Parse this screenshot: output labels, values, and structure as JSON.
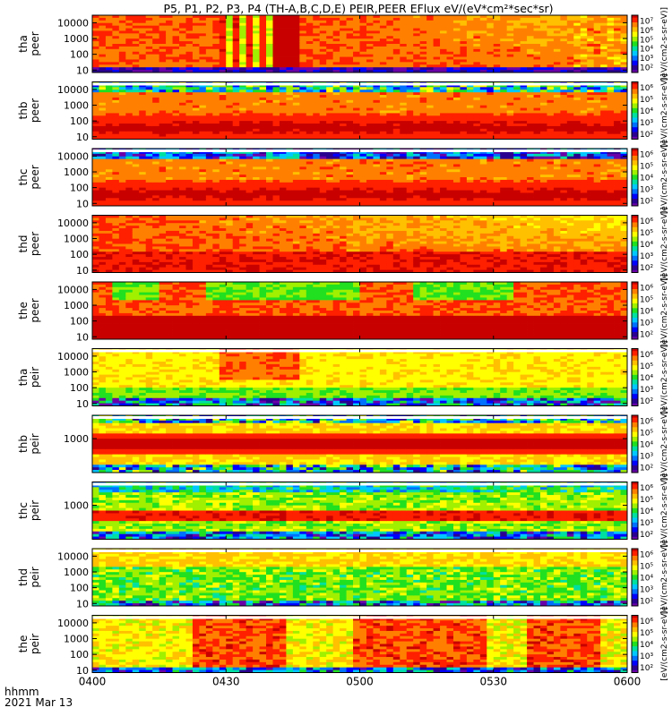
{
  "title": "P5, P1, P2, P3, P4 (TH-A,B,C,D,E) PEIR,PEER EFlux eV/(eV*cm²*sec*sr)",
  "footer": {
    "time_format": "hhmm",
    "date": "2021 Mar 13"
  },
  "colorbar_label": "[eV/(cm2-s-sr-eV)]",
  "palette": [
    "#ffffff",
    "#000000",
    "#6a00a8",
    "#2a0090",
    "#0000ff",
    "#0070ff",
    "#00c8ff",
    "#00e0a0",
    "#20e020",
    "#a0f000",
    "#ffff00",
    "#ffc000",
    "#ff8000",
    "#ff2000",
    "#c80000"
  ],
  "chart_data": {
    "type": "heatmap",
    "x_axis": {
      "ticks": [
        "0400",
        "0430",
        "0500",
        "0530",
        "0600"
      ],
      "range": [
        "04:00",
        "06:00"
      ]
    },
    "panels": [
      {
        "probe": "tha",
        "species": "peer",
        "ylabel": [
          "tha",
          "peer"
        ],
        "y_ticks": [
          "10000",
          "1000",
          "100",
          "10"
        ],
        "y_range_eV": [
          7,
          30000
        ],
        "cb_ticks": [
          "10⁷",
          "10⁶",
          "10⁵",
          "10⁴",
          "10³",
          "10²"
        ],
        "base": 12.6,
        "low_base": 11.6,
        "high_base": 12.2,
        "events": [
          {
            "t0": 28,
            "t1": 46,
            "kind": "striated"
          },
          {
            "t0": 41,
            "t1": 47,
            "kind": "dark"
          },
          {
            "t0": 108,
            "t1": 120,
            "kind": "mixed"
          }
        ]
      },
      {
        "probe": "thb",
        "species": "peer",
        "ylabel": [
          "thb",
          "peer"
        ],
        "y_ticks": [
          "10000",
          "1000",
          "100",
          "10"
        ],
        "y_range_eV": [
          7,
          30000
        ],
        "cb_ticks": [
          "10⁶",
          "10⁵",
          "10⁴",
          "10³",
          "10²"
        ],
        "band": "stable",
        "top_band": "noisy"
      },
      {
        "probe": "thc",
        "species": "peer",
        "ylabel": [
          "thc",
          "peer"
        ],
        "y_ticks": [
          "10000",
          "1000",
          "100",
          "10"
        ],
        "y_range_eV": [
          7,
          30000
        ],
        "cb_ticks": [
          "10⁶",
          "10⁵",
          "10⁴",
          "10³",
          "10²"
        ],
        "band": "stable",
        "top_band": "blue"
      },
      {
        "probe": "thd",
        "species": "peer",
        "ylabel": [
          "thd",
          "peer"
        ],
        "y_ticks": [
          "10000",
          "1000",
          "100",
          "10"
        ],
        "y_range_eV": [
          7,
          30000
        ],
        "cb_ticks": [
          "10⁶",
          "10⁵",
          "10⁴",
          "10³",
          "10²"
        ],
        "band": "decay"
      },
      {
        "probe": "the",
        "species": "peer",
        "ylabel": [
          "the",
          "peer"
        ],
        "y_ticks": [
          "10000",
          "1000",
          "100",
          "10"
        ],
        "y_range_eV": [
          7,
          30000
        ],
        "cb_ticks": [
          "10⁶",
          "10⁵",
          "10⁴",
          "10³",
          "10²"
        ],
        "band": "the-peer"
      },
      {
        "probe": "tha",
        "species": "peir",
        "ylabel": [
          "tha",
          "peir"
        ],
        "y_ticks": [
          "10000",
          "1000",
          "100",
          "10"
        ],
        "y_range_eV": [
          7,
          30000
        ],
        "cb_ticks": [
          "10⁶",
          "10⁵",
          "10⁴",
          "10³",
          "10²"
        ],
        "band": "ion-a"
      },
      {
        "probe": "thb",
        "species": "peir",
        "ylabel": [
          "thb",
          "peir"
        ],
        "y_ticks": [
          "1000"
        ],
        "y_range_eV": [
          7,
          30000
        ],
        "cb_ticks": [
          "10⁶",
          "10⁵",
          "10⁴",
          "10³",
          "10²"
        ],
        "band": "ion-b"
      },
      {
        "probe": "thc",
        "species": "peir",
        "ylabel": [
          "thc",
          "peir"
        ],
        "y_ticks": [
          "1000"
        ],
        "y_range_eV": [
          7,
          30000
        ],
        "cb_ticks": [
          "10⁶",
          "10⁵",
          "10⁴",
          "10³",
          "10²"
        ],
        "band": "ion-c"
      },
      {
        "probe": "thd",
        "species": "peir",
        "ylabel": [
          "thd",
          "peir"
        ],
        "y_ticks": [
          "10000",
          "1000",
          "100",
          "10"
        ],
        "y_range_eV": [
          7,
          30000
        ],
        "cb_ticks": [
          "10⁶",
          "10⁵",
          "10⁴",
          "10³",
          "10²"
        ],
        "band": "ion-d"
      },
      {
        "probe": "the",
        "species": "peir",
        "ylabel": [
          "the",
          "peir"
        ],
        "y_ticks": [
          "10000",
          "1000",
          "100",
          "10"
        ],
        "y_range_eV": [
          7,
          30000
        ],
        "cb_ticks": [
          "10⁶",
          "10⁵",
          "10⁴",
          "10³",
          "10²"
        ],
        "band": "ion-e"
      }
    ]
  }
}
